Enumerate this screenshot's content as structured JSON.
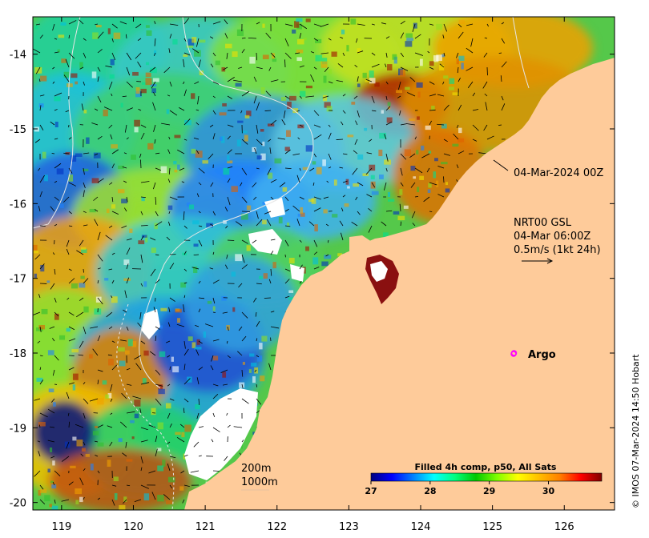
{
  "map": {
    "lon_ticks": [
      "119",
      "120",
      "121",
      "122",
      "123",
      "124",
      "125",
      "126"
    ],
    "lat_ticks": [
      "-14",
      "-15",
      "-16",
      "-17",
      "-18",
      "-19",
      "-20"
    ],
    "extent": {
      "lon_min": 118.6,
      "lon_max": 126.7,
      "lat_min": -20.1,
      "lat_max": -13.5
    },
    "annotations": {
      "composite_time": "04-Mar-2024 00Z",
      "current_title": "NRT00 GSL",
      "current_time": "04-Mar 06:00Z",
      "current_scale": "0.5m/s (1kt 24h)",
      "argo_label": "Argo",
      "contour_200": "200m",
      "contour_1000": "1000m",
      "side_credit": "© IMOS 07-Mar-2024 14:50 Hobart"
    },
    "argo_float": {
      "lon": 125.3,
      "lat": -18.0,
      "color": "#ff00ff"
    },
    "land_color": "#fecb9a",
    "colorbar": {
      "title": "Filled 4h comp, p50, All Sats",
      "ticks": [
        "27",
        "28",
        "29",
        "30"
      ],
      "tick_values": [
        27,
        28,
        29,
        30
      ],
      "range": [
        27,
        30.9
      ],
      "colors": [
        "#00007f",
        "#0000ff",
        "#007fff",
        "#00ffff",
        "#00ff7f",
        "#00c800",
        "#7fff00",
        "#ffff00",
        "#ffbf00",
        "#ff7f00",
        "#ff0000",
        "#7f0000"
      ]
    }
  }
}
